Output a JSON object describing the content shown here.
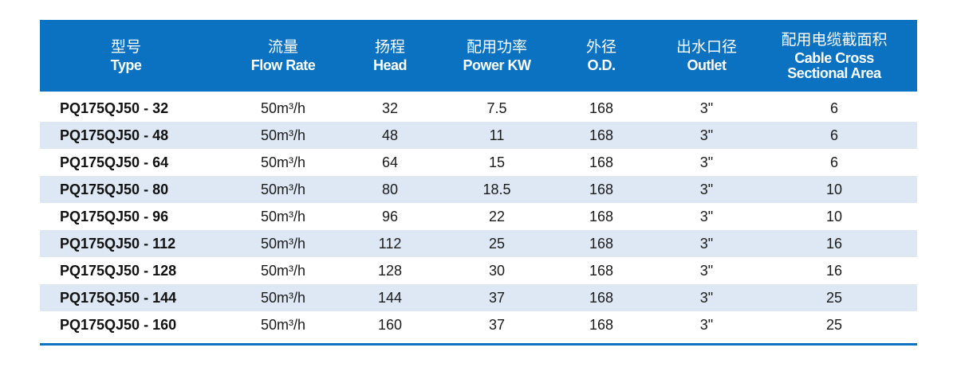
{
  "header": [
    {
      "zh": "型号",
      "en": "Type"
    },
    {
      "zh": "流量",
      "en": "Flow Rate"
    },
    {
      "zh": "扬程",
      "en": "Head"
    },
    {
      "zh": "配用功率",
      "en": "Power KW"
    },
    {
      "zh": "外径",
      "en": "O.D."
    },
    {
      "zh": "出水口径",
      "en": "Outlet"
    },
    {
      "zh": "配用电缆截面积",
      "en": "Cable Cross",
      "en2": "Sectional Area"
    }
  ],
  "rows": [
    [
      "PQ175QJ50 - 32",
      "50m³/h",
      "32",
      "7.5",
      "168",
      "3\"",
      "6"
    ],
    [
      "PQ175QJ50 - 48",
      "50m³/h",
      "48",
      "11",
      "168",
      "3\"",
      "6"
    ],
    [
      "PQ175QJ50 - 64",
      "50m³/h",
      "64",
      "15",
      "168",
      "3\"",
      "6"
    ],
    [
      "PQ175QJ50 - 80",
      "50m³/h",
      "80",
      "18.5",
      "168",
      "3\"",
      "10"
    ],
    [
      "PQ175QJ50 - 96",
      "50m³/h",
      "96",
      "22",
      "168",
      "3\"",
      "10"
    ],
    [
      "PQ175QJ50 - 112",
      "50m³/h",
      "112",
      "25",
      "168",
      "3\"",
      "16"
    ],
    [
      "PQ175QJ50 - 128",
      "50m³/h",
      "128",
      "30",
      "168",
      "3\"",
      "16"
    ],
    [
      "PQ175QJ50 - 144",
      "50m³/h",
      "144",
      "37",
      "168",
      "3\"",
      "25"
    ],
    [
      "PQ175QJ50 - 160",
      "50m³/h",
      "160",
      "37",
      "168",
      "3\"",
      "25"
    ]
  ],
  "colors": {
    "header": "#0a72c0",
    "alt_row": "#dde8f4"
  }
}
